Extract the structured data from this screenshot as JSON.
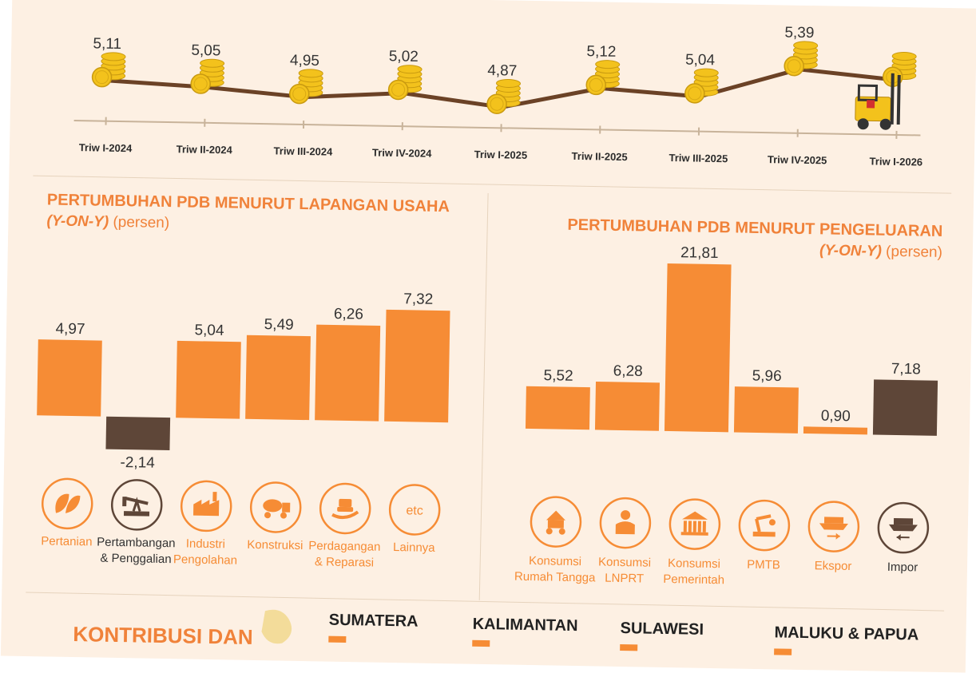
{
  "colors": {
    "background": "#fdf0e3",
    "orange": "#f68c35",
    "brown": "#5e4638",
    "line": "#6b4226",
    "coin": "#f3c21c",
    "axis": "#c8b39a",
    "title": "#f0823a"
  },
  "timeline": {
    "chart_type": "line",
    "periods": [
      "Triw I-2024",
      "Triw II-2024",
      "Triw III-2024",
      "Triw IV-2024",
      "Triw I-2025",
      "Triw II-2025",
      "Triw III-2025",
      "Triw IV-2025",
      "Triw I-2026"
    ],
    "values": [
      5.11,
      5.05,
      4.95,
      5.02,
      4.87,
      5.12,
      5.04,
      5.39,
      null
    ],
    "value_labels": [
      "5,11",
      "5,05",
      "4,95",
      "5,02",
      "4,87",
      "5,12",
      "5,04",
      "5,39",
      ""
    ],
    "icons": [
      "coin-stack-icon",
      "forklift-icon"
    ]
  },
  "chart_data": [
    {
      "type": "bar",
      "title": "PERTUMBUHAN PDB MENURUT LAPANGAN USAHA",
      "subtitle_italic": "(Y-ON-Y)",
      "subtitle_unit": "(persen)",
      "categories": [
        "Pertanian",
        "Pertambangan & Penggalian",
        "Industri Pengolahan",
        "Konstruksi",
        "Perdagangan & Reparasi",
        "Lainnya"
      ],
      "category_lines": [
        [
          "Pertanian"
        ],
        [
          "Pertambangan",
          "& Penggalian"
        ],
        [
          "Industri",
          "Pengolahan"
        ],
        [
          "Konstruksi"
        ],
        [
          "Perdagangan",
          "& Reparasi"
        ],
        [
          "Lainnya"
        ]
      ],
      "values": [
        4.97,
        -2.14,
        5.04,
        5.49,
        6.26,
        7.32
      ],
      "value_labels": [
        "4,97",
        "-2,14",
        "5,04",
        "5,49",
        "6,26",
        "7,32"
      ],
      "highlight": [
        false,
        true,
        false,
        false,
        false,
        false
      ],
      "icons": [
        "leaf-icon",
        "oil-pump-icon",
        "factory-icon",
        "cement-truck-icon",
        "trade-hand-icon",
        "etc-icon"
      ],
      "icon_text": [
        "",
        "",
        "",
        "",
        "",
        "etc"
      ]
    },
    {
      "type": "bar",
      "title": "PERTUMBUHAN PDB MENURUT PENGELUARAN",
      "subtitle_italic": "(Y-ON-Y)",
      "subtitle_unit": "(persen)",
      "categories": [
        "Konsumsi Rumah Tangga",
        "Konsumsi LNPRT",
        "Konsumsi Pemerintah",
        "PMTB",
        "Ekspor",
        "Impor"
      ],
      "category_lines": [
        [
          "Konsumsi",
          "Rumah Tangga"
        ],
        [
          "Konsumsi",
          "LNPRT"
        ],
        [
          "Konsumsi",
          "Pemerintah"
        ],
        [
          "PMTB"
        ],
        [
          "Ekspor"
        ],
        [
          "Impor"
        ]
      ],
      "values": [
        5.52,
        6.28,
        21.81,
        5.96,
        0.9,
        7.18
      ],
      "value_labels": [
        "5,52",
        "6,28",
        "21,81",
        "5,96",
        "0,90",
        "7,18"
      ],
      "highlight": [
        false,
        false,
        false,
        false,
        false,
        true
      ],
      "icons": [
        "household-icon",
        "person-icon",
        "government-building-icon",
        "robot-arm-icon",
        "export-ship-icon",
        "import-ship-icon"
      ],
      "icon_text": [
        "",
        "",
        "",
        "",
        "",
        ""
      ]
    }
  ],
  "footer": {
    "heading": "KONTRIBUSI DAN",
    "regions": [
      "SUMATERA",
      "KALIMANTAN",
      "SULAWESI",
      "MALUKU & PAPUA"
    ]
  }
}
